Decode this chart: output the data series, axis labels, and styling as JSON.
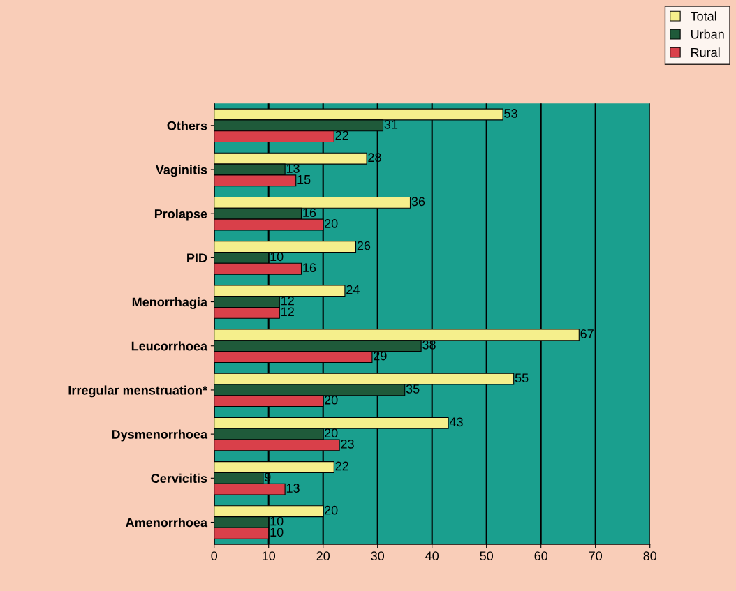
{
  "chart_data": {
    "type": "bar",
    "orientation": "horizontal",
    "categories": [
      "Others",
      "Vaginitis",
      "Prolapse",
      "PID",
      "Menorrhagia",
      "Leucorrhoea",
      "Irregular menstruation*",
      "Dysmenorrhoea",
      "Cervicitis",
      "Amenorrhoea"
    ],
    "series": [
      {
        "name": "Total",
        "color": "#f5ef8c",
        "values": [
          53,
          28,
          36,
          26,
          24,
          67,
          55,
          43,
          22,
          20
        ]
      },
      {
        "name": "Urban",
        "color": "#1f5a3a",
        "values": [
          31,
          13,
          16,
          10,
          12,
          38,
          35,
          20,
          9,
          10
        ]
      },
      {
        "name": "Rural",
        "color": "#d9404a",
        "values": [
          22,
          15,
          20,
          16,
          12,
          29,
          20,
          23,
          13,
          10
        ]
      }
    ],
    "xlim": [
      0,
      80
    ],
    "xticks": [
      0,
      10,
      20,
      30,
      40,
      50,
      60,
      70,
      80
    ],
    "grid": "x",
    "legend": "top right",
    "data_labels": true
  }
}
